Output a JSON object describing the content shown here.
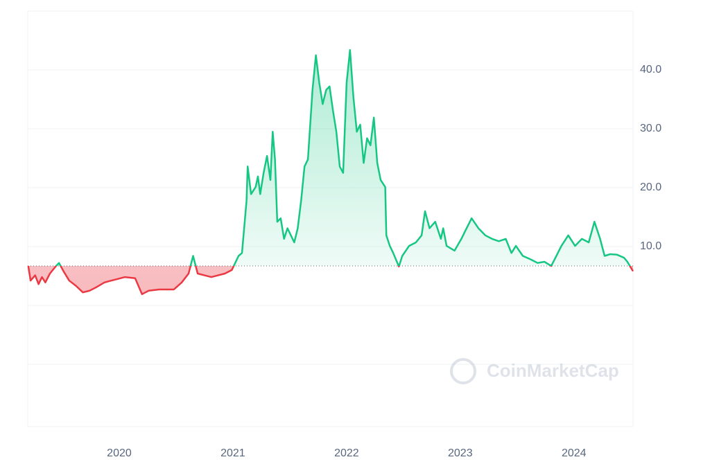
{
  "chart_data": {
    "type": "line",
    "watermark": "CoinMarketCap",
    "baseline": 6.7,
    "up_color": "#16c784",
    "down_color": "#ea3943",
    "x": [
      2019.2,
      2019.22,
      2019.26,
      2019.29,
      2019.32,
      2019.35,
      2019.39,
      2019.44,
      2019.47,
      2019.51,
      2019.56,
      2019.62,
      2019.68,
      2019.74,
      2019.8,
      2019.87,
      2019.93,
      2019.99,
      2020.05,
      2020.14,
      2020.2,
      2020.26,
      2020.35,
      2020.48,
      2020.55,
      2020.61,
      2020.65,
      2020.69,
      2020.75,
      2020.81,
      2020.87,
      2020.93,
      2020.99,
      2021.02,
      2021.05,
      2021.08,
      2021.12,
      2021.13,
      2021.16,
      2021.2,
      2021.22,
      2021.24,
      2021.27,
      2021.3,
      2021.33,
      2021.35,
      2021.37,
      2021.39,
      2021.42,
      2021.45,
      2021.48,
      2021.51,
      2021.54,
      2021.57,
      2021.6,
      2021.63,
      2021.66,
      2021.7,
      2021.73,
      2021.76,
      2021.79,
      2021.82,
      2021.85,
      2021.88,
      2021.91,
      2021.94,
      2021.97,
      2022.0,
      2022.03,
      2022.06,
      2022.09,
      2022.12,
      2022.15,
      2022.18,
      2022.21,
      2022.24,
      2022.27,
      2022.3,
      2022.34,
      2022.35,
      2022.38,
      2022.41,
      2022.46,
      2022.49,
      2022.55,
      2022.61,
      2022.66,
      2022.69,
      2022.73,
      2022.78,
      2022.83,
      2022.85,
      2022.88,
      2022.95,
      2023.01,
      2023.04,
      2023.1,
      2023.16,
      2023.22,
      2023.28,
      2023.34,
      2023.4,
      2023.45,
      2023.49,
      2023.55,
      2023.62,
      2023.68,
      2023.74,
      2023.8,
      2023.83,
      2023.89,
      2023.95,
      2024.01,
      2024.07,
      2024.13,
      2024.18,
      2024.23,
      2024.27,
      2024.32,
      2024.38,
      2024.44,
      2024.47,
      2024.52
    ],
    "values": [
      6.7,
      4.2,
      5.1,
      3.6,
      4.8,
      3.9,
      5.4,
      6.6,
      7.2,
      5.8,
      4.2,
      3.3,
      2.2,
      2.5,
      3.1,
      3.9,
      4.2,
      4.5,
      4.8,
      4.6,
      1.9,
      2.5,
      2.7,
      2.7,
      3.9,
      5.4,
      8.4,
      5.4,
      5.1,
      4.8,
      5.1,
      5.4,
      6.0,
      7.2,
      8.4,
      8.9,
      17.8,
      23.6,
      18.9,
      20.1,
      21.9,
      18.9,
      22.5,
      25.4,
      21.3,
      29.5,
      24.8,
      14.2,
      14.8,
      11.3,
      13.1,
      11.9,
      10.7,
      13.1,
      17.8,
      23.6,
      24.8,
      36.6,
      42.5,
      37.8,
      34.2,
      36.6,
      37.2,
      33.1,
      29.5,
      23.6,
      22.5,
      37.8,
      43.4,
      35.4,
      29.5,
      30.7,
      24.2,
      28.4,
      27.2,
      31.9,
      24.2,
      21.3,
      20.1,
      11.9,
      10.1,
      8.9,
      6.6,
      8.4,
      10.1,
      10.7,
      11.9,
      16.0,
      13.1,
      14.2,
      11.3,
      13.1,
      10.1,
      9.3,
      11.3,
      12.5,
      14.8,
      13.1,
      11.9,
      11.3,
      10.9,
      11.3,
      8.9,
      10.1,
      8.4,
      7.8,
      7.2,
      7.4,
      6.7,
      7.8,
      10.1,
      11.9,
      10.1,
      11.3,
      10.7,
      14.2,
      11.3,
      8.4,
      8.7,
      8.6,
      8.1,
      7.4,
      5.8
    ],
    "xlim": [
      2019.195,
      2024.52
    ],
    "xticks": [
      2020,
      2021,
      2022,
      2023,
      2024
    ],
    "ylim": [
      -20.6,
      50
    ],
    "yticks": [
      {
        "value": 10,
        "label": "10.0"
      },
      {
        "value": 20,
        "label": "20.0"
      },
      {
        "value": 30,
        "label": "30.0"
      },
      {
        "value": 40,
        "label": "40.0"
      }
    ],
    "grid": true
  }
}
